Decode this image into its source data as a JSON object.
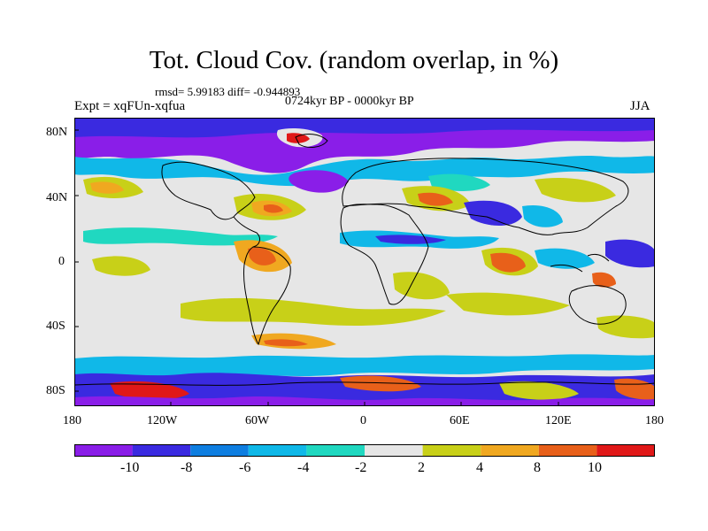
{
  "title": "Tot. Cloud Cov. (random overlap, in %)",
  "stats": "rmsd= 5.99183 diff= -0.944893",
  "period": "0724kyr BP - 0000kyr BP",
  "experiment": "Expt = xqFUn-xqfua",
  "season": "JJA",
  "axes": {
    "lat_ticks": [
      "80N",
      "40N",
      "0",
      "40S",
      "80S"
    ],
    "lat_values": [
      80,
      40,
      0,
      -40,
      -80
    ],
    "lon_ticks": [
      "180",
      "120W",
      "60W",
      "0",
      "60E",
      "120E",
      "180"
    ],
    "lon_values": [
      -180,
      -120,
      -60,
      0,
      60,
      120,
      180
    ],
    "lat_range": [
      -90,
      90
    ],
    "lon_range": [
      -180,
      180
    ]
  },
  "colorbar": {
    "labels": [
      "-10",
      "-8",
      "-6",
      "-4",
      "-2",
      "2",
      "4",
      "8",
      "10"
    ],
    "colors": [
      "#8a1ee8",
      "#3a2ae0",
      "#0e7ee0",
      "#10b8e8",
      "#20d8c0",
      "#e6e6e6",
      "#c8d018",
      "#f0a820",
      "#e8601a",
      "#e01818"
    ]
  },
  "palette": {
    "ocean_neutral": "#e6e6e6",
    "coast": "#000000"
  }
}
